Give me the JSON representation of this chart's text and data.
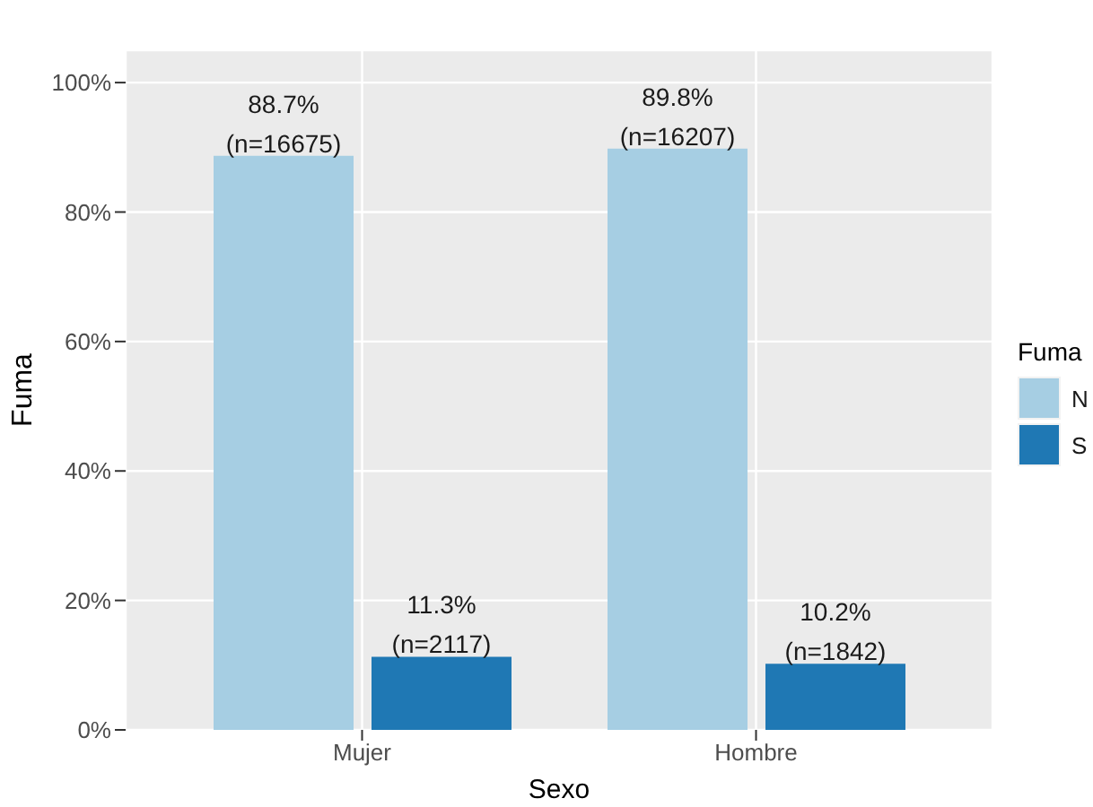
{
  "chart_data": {
    "type": "bar",
    "xlabel": "Sexo",
    "ylabel": "Fuma",
    "legend_title": "Fuma",
    "categories": [
      "Mujer",
      "Hombre"
    ],
    "series": [
      {
        "name": "N",
        "color": "#a6cee3",
        "values": [
          88.7,
          89.8
        ],
        "value_labels": [
          "88.7%\n(n=16675)",
          "89.8%\n(n=16207)"
        ]
      },
      {
        "name": "S",
        "color": "#1f78b4",
        "values": [
          11.3,
          10.2
        ],
        "value_labels": [
          "11.3%\n(n=2117)",
          "10.2%\n(n=1842)"
        ]
      }
    ],
    "ylim": [
      0,
      105
    ],
    "yticks": [
      {
        "value": 0,
        "label": "0%"
      },
      {
        "value": 20,
        "label": "20%"
      },
      {
        "value": 40,
        "label": "40%"
      },
      {
        "value": 60,
        "label": "60%"
      },
      {
        "value": 80,
        "label": "80%"
      },
      {
        "value": 100,
        "label": "100%"
      }
    ],
    "grid": true,
    "legend": "right"
  }
}
